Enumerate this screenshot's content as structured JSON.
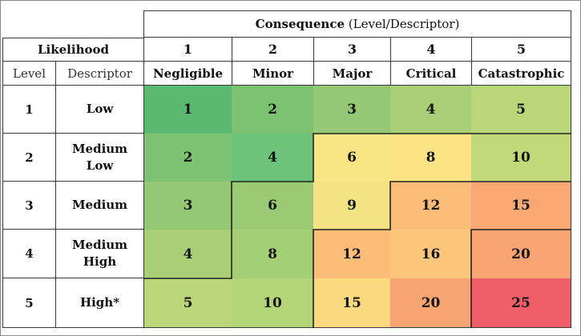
{
  "header": {
    "consequence_main": "Consequence",
    "consequence_sub": "(Level/Descriptor)",
    "likelihood": "Likelihood",
    "level": "Level",
    "descriptor": "Descriptor"
  },
  "consequence": [
    {
      "level": "1",
      "descriptor": "Negligible"
    },
    {
      "level": "2",
      "descriptor": "Minor"
    },
    {
      "level": "3",
      "descriptor": "Major"
    },
    {
      "level": "4",
      "descriptor": "Critical"
    },
    {
      "level": "5",
      "descriptor": "Catastrophic"
    }
  ],
  "likelihood": [
    {
      "level": "1",
      "descriptor": [
        "Low"
      ]
    },
    {
      "level": "2",
      "descriptor": [
        "Medium",
        "Low"
      ]
    },
    {
      "level": "3",
      "descriptor": [
        "Medium"
      ]
    },
    {
      "level": "4",
      "descriptor": [
        "Medium",
        "High"
      ]
    },
    {
      "level": "5",
      "descriptor": [
        "High*"
      ]
    }
  ],
  "matrix": [
    [
      1,
      2,
      3,
      4,
      5
    ],
    [
      2,
      4,
      6,
      8,
      10
    ],
    [
      3,
      6,
      9,
      12,
      15
    ],
    [
      4,
      8,
      12,
      16,
      20
    ],
    [
      5,
      10,
      15,
      20,
      25
    ]
  ],
  "colors": {
    "1": "#5bb86f",
    "2": "#7cc272",
    "3": "#95c874",
    "4": "#a8cf76",
    "5": "#b9d679",
    "6": "#f8e583",
    "8": "#fce383",
    "9": "#fde180",
    "10": "#fcd57d",
    "12": "#fbbd78",
    "15": "#f9a874",
    "16": "#f6a072",
    "20": "#f2846d",
    "25": "#ea6467"
  },
  "matrix_overrides": {
    "1,1": "#6ec37a",
    "2,1": "#9acb74",
    "3,1": "#a5cf75",
    "4,1": "#b3d479",
    "1,4": "#c2d97a",
    "2,2": "#f3e384",
    "4,2": "#fbd97e",
    "3,3": "#fbc679",
    "4,3": "#f7a673",
    "3,4": "#f7a372",
    "4,4": "#f05f68"
  }
}
